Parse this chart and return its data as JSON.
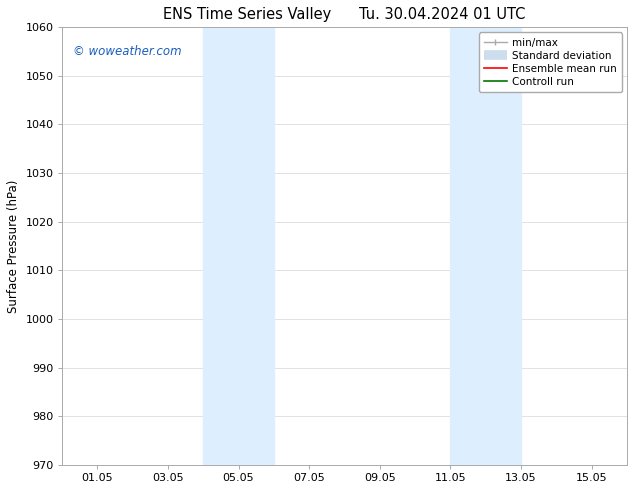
{
  "title_left": "ENS Time Series Valley",
  "title_right": "Tu. 30.04.2024 01 UTC",
  "ylabel": "Surface Pressure (hPa)",
  "xlabel": "",
  "ylim": [
    970,
    1060
  ],
  "yticks": [
    970,
    980,
    990,
    1000,
    1010,
    1020,
    1030,
    1040,
    1050,
    1060
  ],
  "xtick_labels": [
    "01.05",
    "03.05",
    "05.05",
    "07.05",
    "09.05",
    "11.05",
    "13.05",
    "15.05"
  ],
  "xtick_positions": [
    1,
    3,
    5,
    7,
    9,
    11,
    13,
    15
  ],
  "xlim": [
    0,
    16
  ],
  "shaded_bands": [
    {
      "x_start": 4.0,
      "x_end": 6.0
    },
    {
      "x_start": 11.0,
      "x_end": 13.0
    }
  ],
  "shaded_color": "#ddeeff",
  "watermark_text": "© woweather.com",
  "watermark_color": "#1a5fbf",
  "legend_entries": [
    {
      "label": "min/max",
      "color": "#aaaaaa",
      "linestyle": "-",
      "linewidth": 1.0
    },
    {
      "label": "Standard deviation",
      "color": "#ccddee",
      "linestyle": "-",
      "linewidth": 6
    },
    {
      "label": "Ensemble mean run",
      "color": "#ff0000",
      "linestyle": "-",
      "linewidth": 1.2
    },
    {
      "label": "Controll run",
      "color": "#007700",
      "linestyle": "-",
      "linewidth": 1.2
    }
  ],
  "background_color": "#ffffff",
  "grid_color": "#dddddd",
  "title_fontsize": 10.5,
  "axis_fontsize": 8.5,
  "tick_fontsize": 8,
  "watermark_fontsize": 8.5,
  "legend_fontsize": 7.5
}
